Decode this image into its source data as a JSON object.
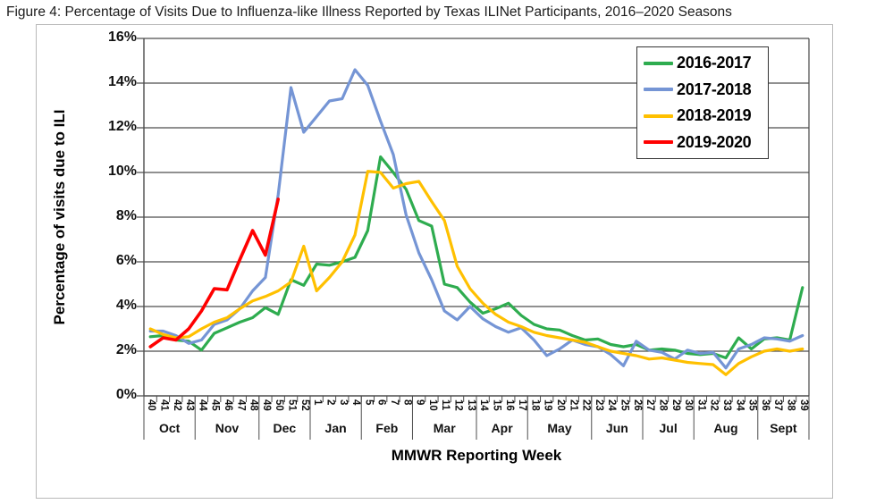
{
  "title": "Figure 4: Percentage of Visits Due to Influenza-like Illness Reported by Texas ILINet Participants, 2016–2020 Seasons",
  "chart_data": {
    "type": "line",
    "title": "Figure 4: Percentage of Visits Due to Influenza-like Illness Reported by Texas ILINet Participants, 2016–2020 Seasons",
    "xlabel": "MMWR Reporting Week",
    "ylabel": "Percentage of visits due to ILI",
    "ylim": [
      0,
      16
    ],
    "y_tick_labels": [
      "0%",
      "2%",
      "4%",
      "6%",
      "8%",
      "10%",
      "12%",
      "14%",
      "16%"
    ],
    "grid": true,
    "legend_position": "top-right",
    "x_weeks": [
      40,
      41,
      42,
      43,
      44,
      45,
      46,
      47,
      48,
      49,
      50,
      51,
      52,
      1,
      2,
      3,
      4,
      5,
      6,
      7,
      8,
      9,
      10,
      11,
      12,
      13,
      14,
      15,
      16,
      17,
      18,
      19,
      20,
      21,
      22,
      23,
      24,
      25,
      26,
      27,
      28,
      29,
      30,
      31,
      32,
      33,
      34,
      35,
      36,
      37,
      38,
      39
    ],
    "month_groups": [
      {
        "label": "Oct",
        "weeks": 4
      },
      {
        "label": "Nov",
        "weeks": 5
      },
      {
        "label": "Dec",
        "weeks": 4
      },
      {
        "label": "Jan",
        "weeks": 4
      },
      {
        "label": "Feb",
        "weeks": 4
      },
      {
        "label": "Mar",
        "weeks": 5
      },
      {
        "label": "Apr",
        "weeks": 4
      },
      {
        "label": "May",
        "weeks": 5
      },
      {
        "label": "Jun",
        "weeks": 4
      },
      {
        "label": "Jul",
        "weeks": 4
      },
      {
        "label": "Aug",
        "weeks": 5
      },
      {
        "label": "Sept",
        "weeks": 4
      }
    ],
    "series": [
      {
        "name": "2016-2017",
        "color": "#2eac4f",
        "values": [
          2.65,
          2.7,
          2.5,
          2.45,
          2.05,
          2.8,
          3.05,
          3.3,
          3.5,
          3.95,
          3.65,
          5.2,
          4.95,
          5.9,
          5.85,
          6.0,
          6.2,
          7.4,
          10.7,
          10.0,
          9.25,
          7.85,
          7.6,
          5.0,
          4.85,
          4.2,
          3.7,
          3.9,
          4.15,
          3.6,
          3.2,
          3.0,
          2.95,
          2.7,
          2.5,
          2.55,
          2.3,
          2.2,
          2.3,
          2.05,
          2.1,
          2.05,
          1.9,
          1.85,
          1.9,
          1.7,
          2.6,
          2.1,
          2.55,
          2.6,
          2.5,
          4.85
        ]
      },
      {
        "name": "2017-2018",
        "color": "#7595d5",
        "values": [
          2.9,
          2.9,
          2.7,
          2.35,
          2.5,
          3.2,
          3.4,
          3.9,
          4.7,
          5.3,
          9.0,
          13.8,
          11.8,
          12.5,
          13.2,
          13.3,
          14.6,
          13.9,
          12.3,
          10.8,
          8.1,
          6.4,
          5.2,
          3.8,
          3.4,
          4.0,
          3.45,
          3.1,
          2.85,
          3.05,
          2.5,
          1.8,
          2.1,
          2.5,
          2.3,
          2.2,
          1.85,
          1.35,
          2.45,
          2.05,
          1.95,
          1.65,
          2.05,
          1.9,
          1.95,
          1.25,
          2.1,
          2.3,
          2.6,
          2.55,
          2.45,
          2.7
        ]
      },
      {
        "name": "2018-2019",
        "color": "#ffc000",
        "values": [
          3.0,
          2.75,
          2.6,
          2.65,
          3.0,
          3.3,
          3.5,
          3.9,
          4.25,
          4.45,
          4.7,
          5.1,
          6.7,
          4.7,
          5.3,
          6.0,
          7.2,
          10.05,
          10.0,
          9.3,
          9.5,
          9.6,
          8.7,
          7.85,
          5.8,
          4.8,
          4.15,
          3.65,
          3.3,
          3.1,
          2.85,
          2.7,
          2.6,
          2.5,
          2.4,
          2.2,
          2.0,
          1.9,
          1.8,
          1.65,
          1.7,
          1.6,
          1.5,
          1.45,
          1.4,
          0.95,
          1.45,
          1.75,
          2.0,
          2.1,
          2.0,
          2.1
        ]
      },
      {
        "name": "2019-2020",
        "color": "#ff0000",
        "values": [
          2.2,
          2.6,
          2.5,
          3.0,
          3.8,
          4.8,
          4.75,
          6.1,
          7.4,
          6.3,
          8.8,
          null,
          null,
          null,
          null,
          null,
          null,
          null,
          null,
          null,
          null,
          null,
          null,
          null,
          null,
          null,
          null,
          null,
          null,
          null,
          null,
          null,
          null,
          null,
          null,
          null,
          null,
          null,
          null,
          null,
          null,
          null,
          null,
          null,
          null,
          null,
          null,
          null,
          null,
          null,
          null,
          null
        ]
      }
    ]
  }
}
